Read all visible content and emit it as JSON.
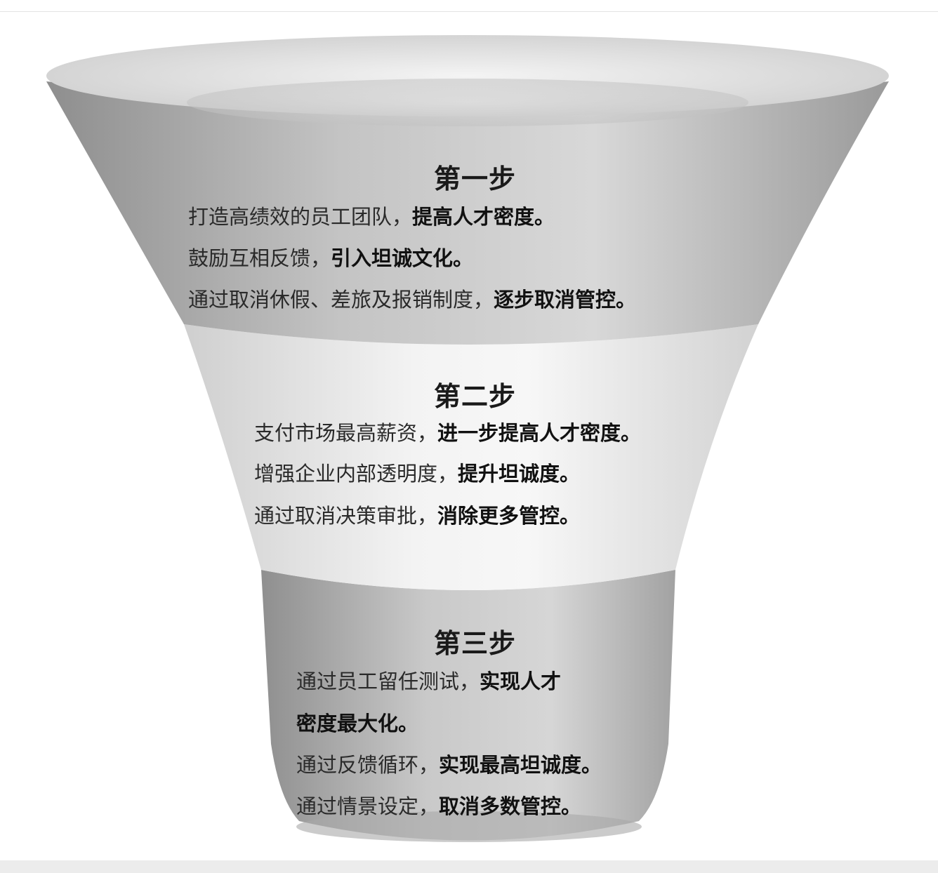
{
  "steps": [
    {
      "title": "第一步",
      "lines": [
        {
          "normal": "打造高绩效的员工团队，",
          "bold": "提高人才密度。"
        },
        {
          "normal": "鼓励互相反馈，",
          "bold": "引入坦诚文化。"
        },
        {
          "normal": "通过取消休假、差旅及报销制度，",
          "bold": "逐步取消管控。"
        }
      ]
    },
    {
      "title": "第二步",
      "lines": [
        {
          "normal": "支付市场最高薪资，",
          "bold": "进一步提高人才密度。"
        },
        {
          "normal": "增强企业内部透明度，",
          "bold": "提升坦诚度。"
        },
        {
          "normal": "通过取消决策审批，",
          "bold": "消除更多管控。"
        }
      ]
    },
    {
      "title": "第三步",
      "lines": [
        {
          "normal": "通过员工留任测试，",
          "bold": "实现人才"
        },
        {
          "normal": "",
          "bold": "密度最大化。"
        },
        {
          "normal": "通过反馈循环，",
          "bold": "实现最高坦诚度。"
        },
        {
          "normal": "通过情景设定，",
          "bold": "取消多数管控。"
        }
      ]
    }
  ],
  "colors": {
    "tier1": "#b9b9b9",
    "tier2": "#e6e6e6",
    "tier3": "#bdbdbd",
    "text": "#2a2a2a"
  }
}
